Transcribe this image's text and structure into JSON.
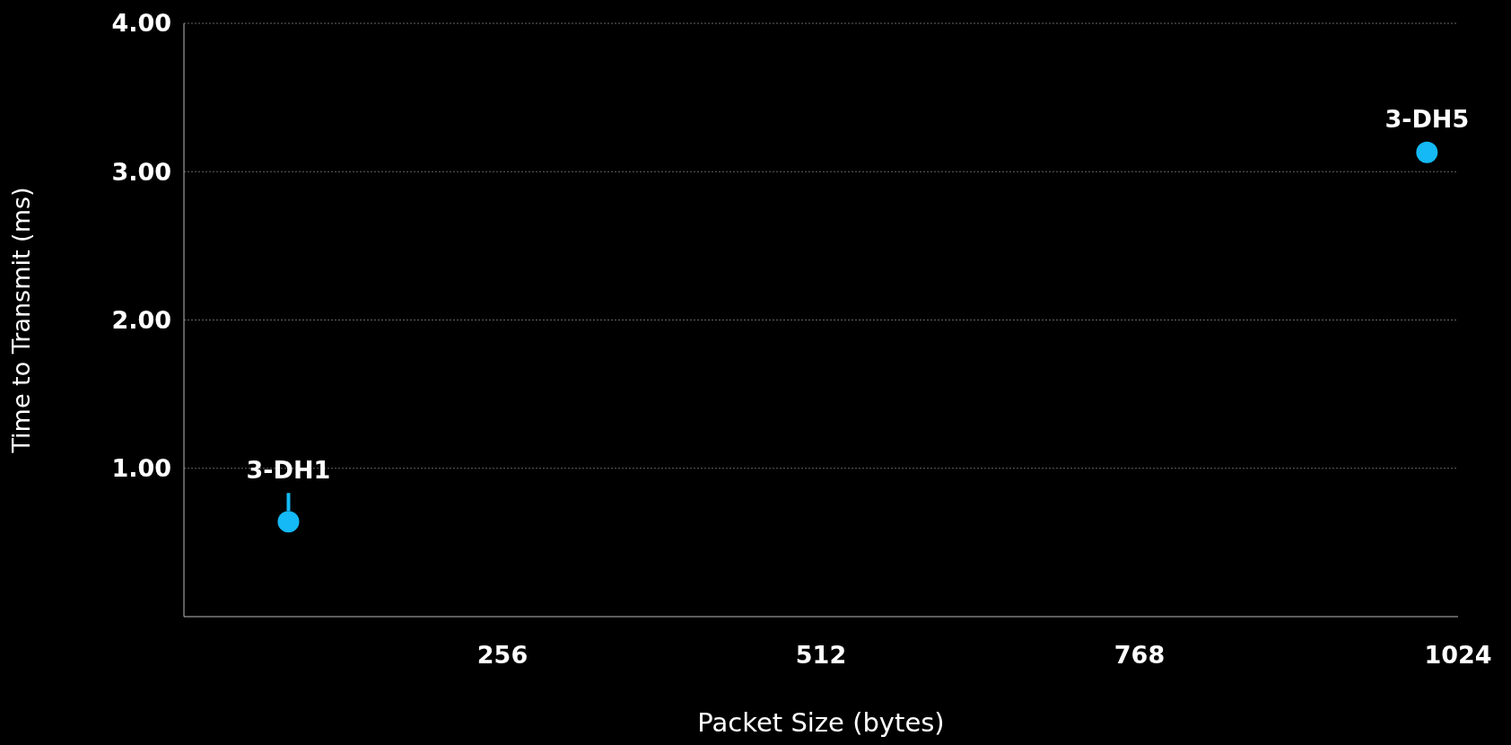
{
  "chart_data": {
    "type": "scatter",
    "xlabel": "Packet Size (bytes)",
    "ylabel": "Time to Transmit (ms)",
    "x": [
      84,
      999
    ],
    "series": [
      {
        "color": "#14b9f5",
        "values": [
          0.64,
          3.13
        ]
      }
    ],
    "xlim": [
      0,
      1024
    ],
    "ylim": [
      0,
      4
    ],
    "xticks": [
      256,
      512,
      768,
      1024
    ],
    "yticks": [
      {
        "value": 1,
        "label": "1.00"
      },
      {
        "value": 2,
        "label": "2.00"
      },
      {
        "value": 3,
        "label": "3.00"
      },
      {
        "value": 4,
        "label": "4.00"
      }
    ],
    "grid": "y",
    "marker": "circle",
    "annotations": [
      {
        "text": "3-DH1",
        "x": 84,
        "y": 0.64
      },
      {
        "text": "3-DH5",
        "x": 999,
        "y": 3.13
      }
    ]
  }
}
